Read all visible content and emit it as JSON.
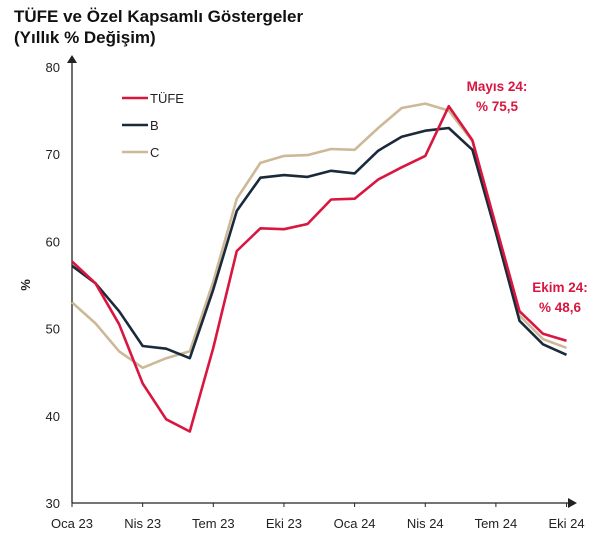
{
  "chart_data": {
    "type": "line",
    "title": "TÜFE ve Özel Kapsamlı Göstergeler",
    "subtitle": "(Yıllık % Değişim)",
    "xlabel": "",
    "ylabel": "%",
    "ylim": [
      30,
      80
    ],
    "yticks": [
      30,
      40,
      50,
      60,
      70,
      80
    ],
    "x": [
      "Oca 23",
      "Şub 23",
      "Mar 23",
      "Nis 23",
      "May 23",
      "Haz 23",
      "Tem 23",
      "Ağu 23",
      "Eyl 23",
      "Eki 23",
      "Kas 23",
      "Ara 23",
      "Oca 24",
      "Şub 24",
      "Mar 24",
      "Nis 24",
      "May 24",
      "Haz 24",
      "Tem 24",
      "Ağu 24",
      "Eyl 24",
      "Eki 24"
    ],
    "xtick_labels": [
      {
        "index": 0,
        "label": "Oca 23"
      },
      {
        "index": 3,
        "label": "Nis 23"
      },
      {
        "index": 6,
        "label": "Tem 23"
      },
      {
        "index": 9,
        "label": "Eki 23"
      },
      {
        "index": 12,
        "label": "Oca 24"
      },
      {
        "index": 15,
        "label": "Nis 24"
      },
      {
        "index": 18,
        "label": "Tem 24"
      },
      {
        "index": 21,
        "label": "Eki 24"
      }
    ],
    "legend_position": "top-left",
    "grid": false,
    "series": [
      {
        "name": "TÜFE",
        "color": "#d8163f",
        "values": [
          57.7,
          55.2,
          50.5,
          43.7,
          39.6,
          38.2,
          47.8,
          58.9,
          61.5,
          61.4,
          62.0,
          64.8,
          64.9,
          67.1,
          68.5,
          69.8,
          75.5,
          71.6,
          61.8,
          52.0,
          49.4,
          48.6
        ]
      },
      {
        "name": "B",
        "color": "#1b2a3a",
        "values": [
          57.2,
          55.2,
          52.0,
          48.0,
          47.7,
          46.6,
          54.5,
          63.5,
          67.3,
          67.6,
          67.4,
          68.1,
          67.8,
          70.4,
          72.0,
          72.7,
          73.0,
          70.5,
          61.0,
          50.9,
          48.2,
          47.0
        ]
      },
      {
        "name": "C",
        "color": "#cdb898",
        "values": [
          53.0,
          50.6,
          47.4,
          45.5,
          46.6,
          47.4,
          55.4,
          64.9,
          69.0,
          69.8,
          69.9,
          70.6,
          70.5,
          73.0,
          75.3,
          75.8,
          75.0,
          71.5,
          61.5,
          51.5,
          48.8,
          47.8
        ]
      }
    ],
    "annotations": [
      {
        "index": 16,
        "line1": "Mayıs 24:",
        "line2": "% 75,5"
      },
      {
        "index": 21,
        "line1": "Ekim 24:",
        "line2": "% 48,6"
      }
    ]
  }
}
